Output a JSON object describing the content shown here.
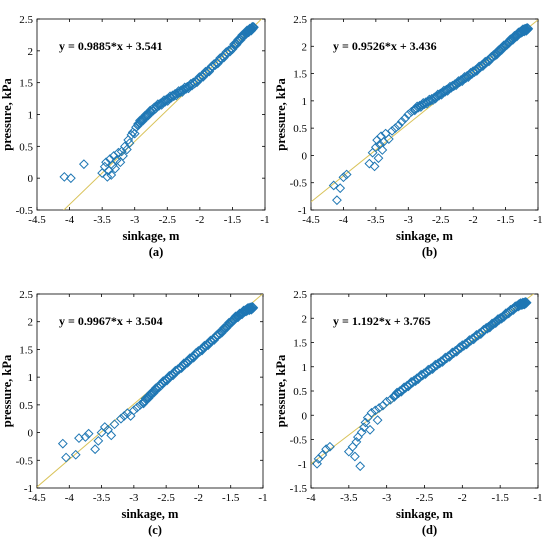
{
  "chart_data": [
    {
      "type": "scatter",
      "caption": "(a)",
      "xlabel": "sinkage, m",
      "ylabel": "pressure, kPa",
      "equation": "y = 0.9885*x + 3.541",
      "fit": {
        "slope": 0.9885,
        "intercept": 3.541
      },
      "xlim": [
        -4.5,
        -1
      ],
      "ylim": [
        -0.5,
        2.5
      ],
      "xticks": [
        "-4.5",
        "-4",
        "-3.5",
        "-3",
        "-2.5",
        "-2",
        "-1.5",
        "-1"
      ],
      "yticks": [
        "-0.5",
        "0",
        "0.5",
        "1",
        "1.5",
        "2",
        "2.5"
      ],
      "colors": {
        "marker": "#1f77b4",
        "fit": "#d9c35a"
      },
      "points": [
        [
          -4.08,
          0.02
        ],
        [
          -3.98,
          0.0
        ],
        [
          -3.78,
          0.22
        ],
        [
          -3.5,
          0.08
        ],
        [
          -3.46,
          0.18
        ],
        [
          -3.44,
          0.25
        ],
        [
          -3.42,
          0.02
        ],
        [
          -3.4,
          0.12
        ],
        [
          -3.38,
          0.3
        ],
        [
          -3.36,
          0.05
        ],
        [
          -3.34,
          0.2
        ],
        [
          -3.32,
          0.35
        ],
        [
          -3.3,
          0.15
        ],
        [
          -3.28,
          0.28
        ],
        [
          -3.25,
          0.4
        ],
        [
          -3.22,
          0.25
        ],
        [
          -3.2,
          0.42
        ],
        [
          -3.18,
          0.35
        ],
        [
          -3.15,
          0.5
        ],
        [
          -3.12,
          0.45
        ],
        [
          -3.1,
          0.6
        ],
        [
          -3.08,
          0.55
        ],
        [
          -3.05,
          0.68
        ],
        [
          -3.03,
          0.72
        ],
        [
          -3.0,
          0.7
        ],
        [
          -2.98,
          0.8
        ],
        [
          -2.95,
          0.85
        ]
      ],
      "curve": [
        [
          -2.95,
          0.85
        ],
        [
          -2.7,
          1.1
        ],
        [
          -2.4,
          1.3
        ],
        [
          -2.1,
          1.48
        ],
        [
          -1.8,
          1.75
        ],
        [
          -1.5,
          2.05
        ],
        [
          -1.3,
          2.28
        ],
        [
          -1.17,
          2.37
        ]
      ]
    },
    {
      "type": "scatter",
      "caption": "(b)",
      "xlabel": "sinkage, m",
      "ylabel": "pressure, kPa",
      "equation": "y = 0.9526*x + 3.436",
      "fit": {
        "slope": 0.9526,
        "intercept": 3.436
      },
      "xlim": [
        -4.5,
        -1
      ],
      "ylim": [
        -1,
        2.5
      ],
      "xticks": [
        "-4.5",
        "-4",
        "-3.5",
        "-3",
        "-2.5",
        "-2",
        "-1.5",
        "-1"
      ],
      "yticks": [
        "-1",
        "-0.5",
        "0",
        "0.5",
        "1",
        "1.5",
        "2",
        "2.5"
      ],
      "colors": {
        "marker": "#1f77b4",
        "fit": "#d9c35a"
      },
      "points": [
        [
          -4.15,
          -0.55
        ],
        [
          -4.1,
          -0.82
        ],
        [
          -4.05,
          -0.6
        ],
        [
          -4.0,
          -0.4
        ],
        [
          -3.95,
          -0.35
        ],
        [
          -3.6,
          -0.15
        ],
        [
          -3.55,
          0.05
        ],
        [
          -3.52,
          -0.2
        ],
        [
          -3.5,
          0.15
        ],
        [
          -3.48,
          0.28
        ],
        [
          -3.46,
          -0.05
        ],
        [
          -3.44,
          0.2
        ],
        [
          -3.42,
          0.35
        ],
        [
          -3.4,
          0.1
        ],
        [
          -3.38,
          0.25
        ],
        [
          -3.35,
          0.4
        ],
        [
          -3.3,
          0.3
        ],
        [
          -3.25,
          0.45
        ],
        [
          -3.2,
          0.5
        ],
        [
          -3.15,
          0.55
        ],
        [
          -3.1,
          0.62
        ],
        [
          -3.05,
          0.68
        ],
        [
          -3.0,
          0.75
        ],
        [
          -2.95,
          0.8
        ],
        [
          -2.9,
          0.85
        ]
      ],
      "curve": [
        [
          -2.9,
          0.85
        ],
        [
          -2.6,
          1.05
        ],
        [
          -2.3,
          1.28
        ],
        [
          -2.0,
          1.52
        ],
        [
          -1.7,
          1.8
        ],
        [
          -1.45,
          2.08
        ],
        [
          -1.25,
          2.28
        ],
        [
          -1.15,
          2.32
        ]
      ]
    },
    {
      "type": "scatter",
      "caption": "(c)",
      "xlabel": "sinkage, m",
      "ylabel": "pressure, kPa",
      "equation": "y = 0.9967*x + 3.504",
      "fit": {
        "slope": 0.9967,
        "intercept": 3.504
      },
      "xlim": [
        -4.5,
        -1
      ],
      "ylim": [
        -1,
        2.5
      ],
      "xticks": [
        "-4.5",
        "-4",
        "-3.5",
        "-3",
        "-2.5",
        "-2",
        "-1.5",
        "-1"
      ],
      "yticks": [
        "-1",
        "-0.5",
        "0",
        "0.5",
        "1",
        "1.5",
        "2",
        "2.5"
      ],
      "colors": {
        "marker": "#1f77b4",
        "fit": "#d9c35a"
      },
      "points": [
        [
          -4.1,
          -0.2
        ],
        [
          -4.05,
          -0.45
        ],
        [
          -3.9,
          -0.4
        ],
        [
          -3.85,
          -0.1
        ],
        [
          -3.75,
          -0.08
        ],
        [
          -3.7,
          -0.02
        ],
        [
          -3.6,
          -0.3
        ],
        [
          -3.55,
          -0.15
        ],
        [
          -3.5,
          0.0
        ],
        [
          -3.45,
          0.1
        ],
        [
          -3.4,
          0.05
        ],
        [
          -3.35,
          -0.05
        ],
        [
          -3.3,
          0.15
        ],
        [
          -3.2,
          0.25
        ],
        [
          -3.15,
          0.3
        ],
        [
          -3.1,
          0.35
        ],
        [
          -3.05,
          0.3
        ],
        [
          -3.0,
          0.4
        ],
        [
          -2.95,
          0.45
        ],
        [
          -2.9,
          0.5
        ],
        [
          -2.85,
          0.55
        ]
      ],
      "curve": [
        [
          -2.85,
          0.55
        ],
        [
          -2.6,
          0.85
        ],
        [
          -2.3,
          1.15
        ],
        [
          -2.0,
          1.45
        ],
        [
          -1.7,
          1.75
        ],
        [
          -1.45,
          2.05
        ],
        [
          -1.25,
          2.22
        ],
        [
          -1.15,
          2.25
        ]
      ]
    },
    {
      "type": "scatter",
      "caption": "(d)",
      "xlabel": "sinkage, m",
      "ylabel": "pressure, kPa",
      "equation": "y = 1.192*x + 3.765",
      "fit": {
        "slope": 1.192,
        "intercept": 3.765
      },
      "xlim": [
        -4,
        -1
      ],
      "ylim": [
        -1.5,
        2.5
      ],
      "xticks": [
        "-4",
        "-3.5",
        "-3",
        "-2.5",
        "-2",
        "-1.5",
        "-1"
      ],
      "yticks": [
        "-1.5",
        "-1",
        "-0.5",
        "0",
        "0.5",
        "1",
        "1.5",
        "2",
        "2.5"
      ],
      "colors": {
        "marker": "#1f77b4",
        "fit": "#d9c35a"
      },
      "points": [
        [
          -3.92,
          -1.0
        ],
        [
          -3.9,
          -0.9
        ],
        [
          -3.85,
          -0.82
        ],
        [
          -3.8,
          -0.7
        ],
        [
          -3.75,
          -0.65
        ],
        [
          -3.5,
          -0.75
        ],
        [
          -3.45,
          -0.65
        ],
        [
          -3.42,
          -0.85
        ],
        [
          -3.4,
          -0.55
        ],
        [
          -3.38,
          -0.45
        ],
        [
          -3.35,
          -1.05
        ],
        [
          -3.33,
          -0.35
        ],
        [
          -3.3,
          -0.25
        ],
        [
          -3.28,
          -0.15
        ],
        [
          -3.25,
          -0.05
        ],
        [
          -3.22,
          -0.3
        ],
        [
          -3.2,
          0.05
        ],
        [
          -3.15,
          0.1
        ],
        [
          -3.12,
          -0.1
        ],
        [
          -3.1,
          0.15
        ],
        [
          -3.05,
          0.2
        ],
        [
          -3.0,
          0.28
        ],
        [
          -2.95,
          0.32
        ],
        [
          -2.9,
          0.4
        ]
      ],
      "curve": [
        [
          -2.9,
          0.4
        ],
        [
          -2.6,
          0.75
        ],
        [
          -2.3,
          1.08
        ],
        [
          -2.0,
          1.42
        ],
        [
          -1.7,
          1.76
        ],
        [
          -1.45,
          2.05
        ],
        [
          -1.25,
          2.28
        ],
        [
          -1.15,
          2.32
        ]
      ]
    }
  ]
}
